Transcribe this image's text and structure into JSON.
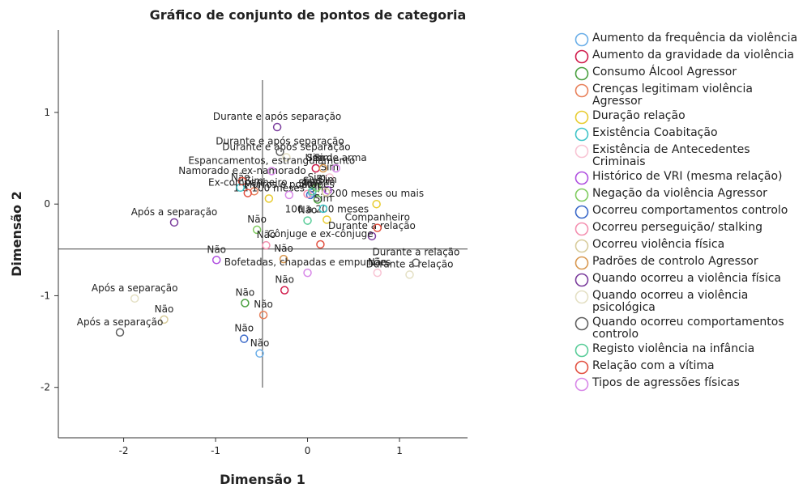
{
  "chart_data": {
    "type": "scatter",
    "title": "Gráfico de conjunto de pontos de categoria",
    "xlabel": "Dimensão 1",
    "ylabel": "Dimensão 2",
    "xlim": [
      -2.71,
      1.74
    ],
    "ylim": [
      -2.55,
      1.9
    ],
    "xticks": [
      -2,
      -1,
      0,
      1
    ],
    "yticks": [
      1,
      0,
      -1,
      -2
    ],
    "vline": -0.49,
    "hline": -0.49,
    "series": [
      {
        "name": "Aumento da frequência da violência",
        "color": "#6aaee8",
        "x": [
          0.05,
          -0.52
        ],
        "y": [
          0.12,
          -1.63
        ],
        "labels": [
          "Sim",
          "Não"
        ]
      },
      {
        "name": "Aumento da gravidade da violência",
        "color": "#d01a4a",
        "x": [
          0.09,
          -0.25
        ],
        "y": [
          0.39,
          -0.94
        ],
        "labels": [
          "Sim",
          "Não"
        ]
      },
      {
        "name": "Consumo Álcool Agressor",
        "color": "#4aa040",
        "x": [
          0.11,
          -0.68
        ],
        "y": [
          0.05,
          -1.08
        ],
        "labels": [
          "Sim",
          "Não"
        ]
      },
      {
        "name": "Crenças legitimam violência Agressor",
        "color": "#e8805a",
        "x": [
          -0.58,
          -0.48
        ],
        "y": [
          0.14,
          -1.21
        ],
        "labels": [
          "Sim",
          "Não"
        ]
      },
      {
        "name": "Duração relação",
        "color": "#e8cc30",
        "x": [
          -0.42,
          0.21,
          0.75
        ],
        "y": [
          0.06,
          -0.17,
          0.0
        ],
        "labels": [
          "1 a 100 meses",
          "100 a 200 meses",
          "200 meses ou mais"
        ]
      },
      {
        "name": "Existência Coabitação",
        "color": "#40c4c8",
        "x": [
          0.17,
          -0.73
        ],
        "y": [
          -0.05,
          0.18
        ],
        "labels": [
          "Sim",
          "Não"
        ]
      },
      {
        "name": "Existência de Antecedentes Criminais",
        "color": "#f8c4d4",
        "x": [
          0.24,
          0.76
        ],
        "y": [
          0.29,
          -0.75
        ],
        "labels": [
          "Sim",
          "Não"
        ]
      },
      {
        "name": "Histórico de VRI (mesma relação)",
        "color": "#b050e0",
        "x": [
          0.22,
          -0.99
        ],
        "y": [
          0.15,
          -0.61
        ],
        "labels": [
          "Sim",
          "Não"
        ]
      },
      {
        "name": "Negação da violência Agressor",
        "color": "#80cc60",
        "x": [
          0.1,
          -0.55
        ],
        "y": [
          0.18,
          -0.28
        ],
        "labels": [
          "Sim",
          "Não"
        ]
      },
      {
        "name": "Ocorreu comportamentos controlo",
        "color": "#3a68c8",
        "x": [
          0.03,
          -0.69
        ],
        "y": [
          0.1,
          -1.47
        ],
        "labels": [
          "Sim",
          "Não"
        ]
      },
      {
        "name": "Ocorreu perseguição/ stalking",
        "color": "#f490b0",
        "x": [
          0.0,
          -0.45
        ],
        "y": [
          0.11,
          -0.45
        ],
        "labels": [
          "Sim",
          "Não"
        ]
      },
      {
        "name": "Ocorreu violência física",
        "color": "#d8cc9c",
        "x": [
          0.2,
          -1.56
        ],
        "y": [
          0.13,
          -1.26
        ],
        "labels": [
          "Sim",
          "Não"
        ]
      },
      {
        "name": "Padrões de controlo Agressor",
        "color": "#d89850",
        "x": [
          0.17,
          -0.26
        ],
        "y": [
          0.39,
          -0.6
        ],
        "labels": [
          "Sim",
          "Não"
        ]
      },
      {
        "name": "Quando ocorreu a violência física",
        "color": "#7a3c9c",
        "x": [
          -0.33,
          0.7,
          -1.45
        ],
        "y": [
          0.84,
          -0.35,
          -0.2
        ],
        "labels": [
          "Durante e após separação",
          "Durante a relação",
          "Após a separação"
        ]
      },
      {
        "name": "Quando ocorreu a violência psicológica",
        "color": "#e4e0c4",
        "x": [
          -0.23,
          1.11,
          -1.88
        ],
        "y": [
          0.51,
          -0.77,
          -1.03
        ],
        "labels": [
          "Durante e após separação",
          "Durante a relação",
          "Após a separação"
        ]
      },
      {
        "name": "Quando ocorreu comportamentos controlo",
        "color": "#606060",
        "x": [
          -0.3,
          1.18,
          -2.04
        ],
        "y": [
          0.57,
          -0.64,
          -1.4
        ],
        "labels": [
          "Durante e após separação",
          "Durante a relação",
          "Após a separação"
        ]
      },
      {
        "name": "Registo violência na infância",
        "color": "#58cc98",
        "x": [
          0.05,
          0.0
        ],
        "y": [
          0.14,
          -0.18
        ],
        "labels": [
          "Sim",
          "Não"
        ]
      },
      {
        "name": "Relação com a vítima",
        "color": "#e25040",
        "x": [
          -0.71,
          -0.65,
          0.76,
          0.14
        ],
        "y": [
          0.25,
          0.12,
          -0.26,
          -0.44
        ],
        "labels": [
          "Namorado e ex-namorado",
          "Ex-companheiro",
          "Companheiro",
          "Cônjuge e ex-cônjuge"
        ]
      },
      {
        "name": "Tipos de agressões físicas",
        "color": "#d888e8",
        "x": [
          -0.39,
          -0.2,
          0.31,
          0.0
        ],
        "y": [
          0.36,
          0.1,
          0.39,
          -0.75
        ],
        "labels": [
          "Espancamentos, estrangulamento",
          "Murros e pontapés",
          "Uso de arma",
          "Bofetadas, chapadas e empurrões"
        ]
      }
    ]
  }
}
